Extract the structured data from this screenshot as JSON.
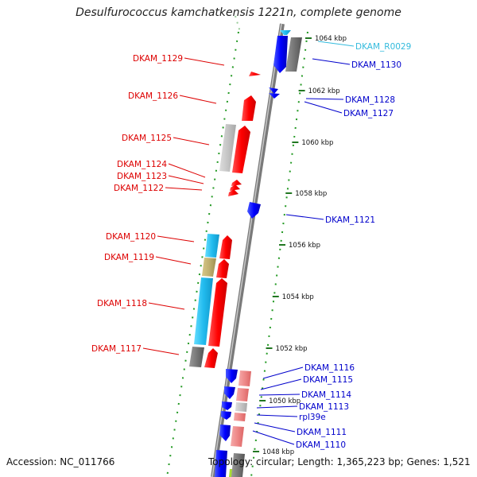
{
  "title": "Desulfurococcus kamchatkensis 1221n, complete genome",
  "footer": {
    "accession": "Accession: NC_011766",
    "topology": "Topology: circular; Length: 1,365,223 bp; Genes: 1,521"
  },
  "scale_labels": [
    "1064 kbp",
    "1062 kbp",
    "1060 kbp",
    "1058 kbp",
    "1056 kbp",
    "1054 kbp",
    "1052 kbp",
    "1050 kbp",
    "1048 kbp"
  ],
  "left_labels": [
    "DKAM_1129",
    "DKAM_1126",
    "DKAM_1125",
    "DKAM_1124",
    "DKAM_1123",
    "DKAM_1122",
    "DKAM_1120",
    "DKAM_1119",
    "DKAM_1118",
    "DKAM_1117"
  ],
  "right_labels": [
    "DKAM_R0029",
    "DKAM_1130",
    "DKAM_1128",
    "DKAM_1127",
    "DKAM_1121",
    "DKAM_1116",
    "DKAM_1115",
    "DKAM_1114",
    "DKAM_1113",
    "rpl39e",
    "DKAM_1111",
    "DKAM_1110"
  ],
  "colors": {
    "forward_strand": "#ff0000",
    "reverse_strand": "#0000ff",
    "rna": "#33bbdd",
    "backbone": "#888888",
    "gc_ticks": "#228822"
  }
}
